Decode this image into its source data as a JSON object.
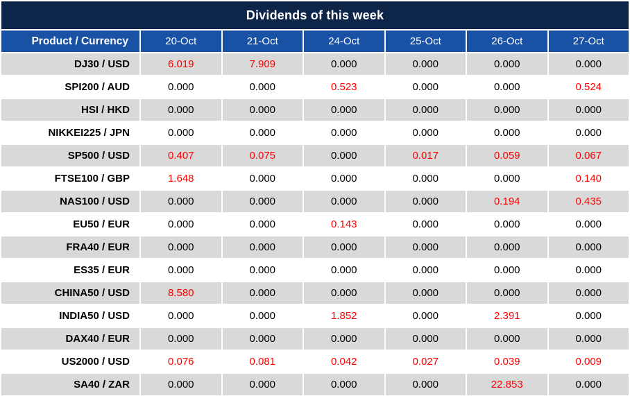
{
  "title": "Dividends of this week",
  "colors": {
    "title_bg": "#0d2549",
    "header_bg": "#1952a5",
    "row_alt_bg": "#d9d9d9",
    "row_bg": "#ffffff",
    "value_red": "#ff0000",
    "text_black": "#000000",
    "header_text": "#ffffff"
  },
  "table": {
    "corner_label": "Product / Currency",
    "date_columns": [
      "20-Oct",
      "21-Oct",
      "24-Oct",
      "25-Oct",
      "26-Oct",
      "27-Oct"
    ],
    "rows": [
      {
        "product": "DJ30 / USD",
        "values": [
          "6.019",
          "7.909",
          "0.000",
          "0.000",
          "0.000",
          "0.000"
        ]
      },
      {
        "product": "SPI200 / AUD",
        "values": [
          "0.000",
          "0.000",
          "0.523",
          "0.000",
          "0.000",
          "0.524"
        ]
      },
      {
        "product": "HSI / HKD",
        "values": [
          "0.000",
          "0.000",
          "0.000",
          "0.000",
          "0.000",
          "0.000"
        ]
      },
      {
        "product": "NIKKEI225 / JPN",
        "values": [
          "0.000",
          "0.000",
          "0.000",
          "0.000",
          "0.000",
          "0.000"
        ]
      },
      {
        "product": "SP500 / USD",
        "values": [
          "0.407",
          "0.075",
          "0.000",
          "0.017",
          "0.059",
          "0.067"
        ]
      },
      {
        "product": "FTSE100 / GBP",
        "values": [
          "1.648",
          "0.000",
          "0.000",
          "0.000",
          "0.000",
          "0.140"
        ]
      },
      {
        "product": "NAS100 / USD",
        "values": [
          "0.000",
          "0.000",
          "0.000",
          "0.000",
          "0.194",
          "0.435"
        ]
      },
      {
        "product": "EU50 / EUR",
        "values": [
          "0.000",
          "0.000",
          "0.143",
          "0.000",
          "0.000",
          "0.000"
        ]
      },
      {
        "product": "FRA40 / EUR",
        "values": [
          "0.000",
          "0.000",
          "0.000",
          "0.000",
          "0.000",
          "0.000"
        ]
      },
      {
        "product": "ES35 / EUR",
        "values": [
          "0.000",
          "0.000",
          "0.000",
          "0.000",
          "0.000",
          "0.000"
        ]
      },
      {
        "product": "CHINA50 / USD",
        "values": [
          "8.580",
          "0.000",
          "0.000",
          "0.000",
          "0.000",
          "0.000"
        ]
      },
      {
        "product": "INDIA50 / USD",
        "values": [
          "0.000",
          "0.000",
          "1.852",
          "0.000",
          "2.391",
          "0.000"
        ]
      },
      {
        "product": "DAX40 / EUR",
        "values": [
          "0.000",
          "0.000",
          "0.000",
          "0.000",
          "0.000",
          "0.000"
        ]
      },
      {
        "product": "US2000 / USD",
        "values": [
          "0.076",
          "0.081",
          "0.042",
          "0.027",
          "0.039",
          "0.009"
        ]
      },
      {
        "product": "SA40 / ZAR",
        "values": [
          "0.000",
          "0.000",
          "0.000",
          "0.000",
          "22.853",
          "0.000"
        ]
      }
    ]
  }
}
